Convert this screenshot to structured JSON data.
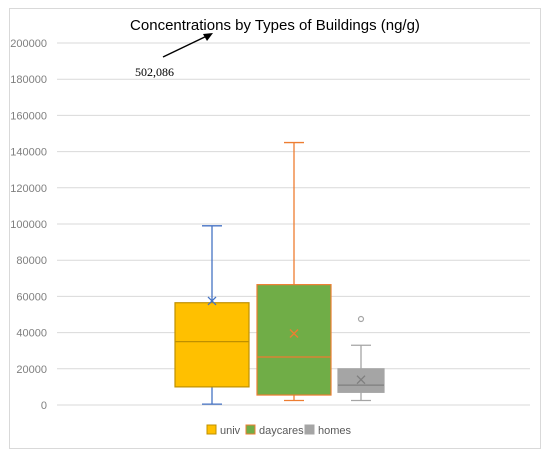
{
  "chart_data": {
    "type": "box",
    "title": "Concentrations by Types of Buildings (ng/g)",
    "xlabel": "",
    "ylabel": "",
    "ylim": [
      0,
      200000
    ],
    "yticks": [
      0,
      20000,
      40000,
      60000,
      80000,
      100000,
      120000,
      140000,
      160000,
      180000,
      200000
    ],
    "ytick_labels": [
      "0",
      "20000",
      "40000",
      "60000",
      "80000",
      "100000",
      "120000",
      "140000",
      "160000",
      "180000",
      "200000"
    ],
    "grid": true,
    "legend_position": "bottom",
    "annotation": {
      "text": "502,086",
      "arrow": "up-right"
    },
    "series": [
      {
        "name": "univ",
        "min": 500,
        "q1": 10000,
        "median": 35000,
        "q3": 56500,
        "max": 99000,
        "mean": 57500,
        "outliers": [],
        "fill": "#ffc000",
        "border": "#bf9000",
        "whisker": "#4472c4",
        "median_color": "#bf9000",
        "mean_color": "#4472c4"
      },
      {
        "name": "daycares",
        "min": 2500,
        "q1": 5500,
        "median": 26500,
        "q3": 66500,
        "max": 145000,
        "mean": 39500,
        "outliers": [],
        "fill": "#70ad47",
        "border": "#ed7d31",
        "whisker": "#ed7d31",
        "median_color": "#ed7d31",
        "mean_color": "#ed7d31"
      },
      {
        "name": "homes",
        "min": 2500,
        "q1": 7000,
        "median": 11000,
        "q3": 20000,
        "max": 33000,
        "mean": 14000,
        "outliers": [
          47500
        ],
        "fill": "#a5a5a5",
        "border": "#a5a5a5",
        "whisker": "#a5a5a5",
        "median_color": "#7f7f7f",
        "mean_color": "#7f7f7f"
      }
    ]
  }
}
